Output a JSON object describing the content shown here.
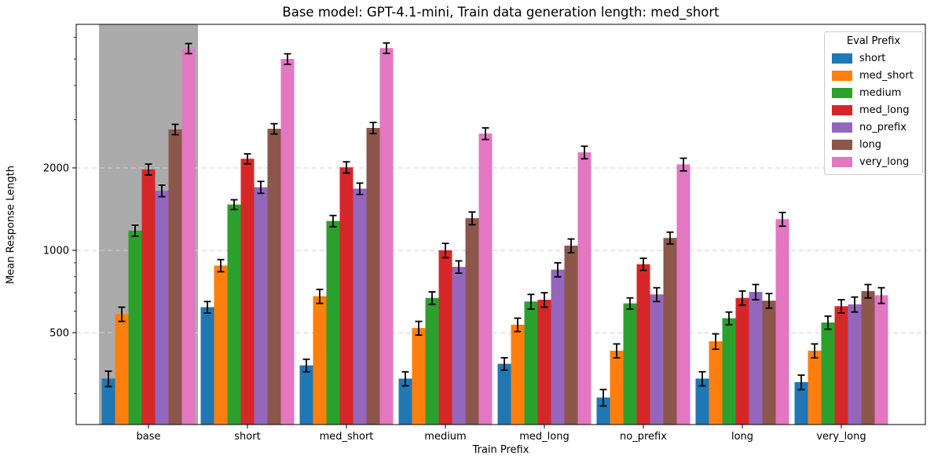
{
  "figure": {
    "background": "#ffffff"
  },
  "chart_data": {
    "type": "bar",
    "title": "Base model: GPT-4.1-mini, Train data generation length: med_short",
    "xlabel": "Train Prefix",
    "ylabel": "Mean Response Length",
    "y_scale": "log",
    "ylim": [
      231,
      6690
    ],
    "y_ticks": [
      500,
      1000,
      2000
    ],
    "y_minor_ticks": [
      300,
      400,
      600,
      700,
      800,
      900,
      3000,
      4000,
      5000,
      6000
    ],
    "grid": {
      "show": true,
      "style": "dashed",
      "color": "#d0d0d0",
      "axis": "y"
    },
    "categories": [
      "base",
      "short",
      "med_short",
      "medium",
      "med_long",
      "no_prefix",
      "long",
      "very_long"
    ],
    "highlight": {
      "category": "base",
      "color": "#ababab"
    },
    "legend": {
      "title": "Eval Prefix",
      "position": "upper right"
    },
    "error_bar_color": "#000000",
    "series": [
      {
        "name": "short",
        "color": "#1f77b4",
        "values": [
          340,
          620,
          380,
          340,
          385,
          290,
          340,
          330
        ],
        "errors": [
          22,
          30,
          20,
          20,
          20,
          20,
          20,
          20
        ]
      },
      {
        "name": "med_short",
        "color": "#ff7f0e",
        "values": [
          585,
          880,
          680,
          520,
          535,
          430,
          465,
          430
        ],
        "errors": [
          35,
          45,
          40,
          30,
          30,
          25,
          30,
          25
        ]
      },
      {
        "name": "medium",
        "color": "#2ca02c",
        "values": [
          1180,
          1470,
          1280,
          670,
          650,
          640,
          565,
          545
        ],
        "errors": [
          55,
          60,
          60,
          35,
          40,
          30,
          30,
          30
        ]
      },
      {
        "name": "med_long",
        "color": "#d62728",
        "values": [
          1975,
          2160,
          2010,
          1000,
          660,
          890,
          670,
          625
        ],
        "errors": [
          90,
          90,
          95,
          60,
          40,
          45,
          40,
          35
        ]
      },
      {
        "name": "no_prefix",
        "color": "#9467bd",
        "values": [
          1650,
          1700,
          1680,
          870,
          850,
          690,
          705,
          635
        ],
        "errors": [
          80,
          85,
          80,
          45,
          50,
          40,
          45,
          40
        ]
      },
      {
        "name": "long",
        "color": "#8c564b",
        "values": [
          2765,
          2780,
          2800,
          1310,
          1040,
          1110,
          655,
          710
        ],
        "errors": [
          120,
          120,
          130,
          70,
          60,
          55,
          40,
          40
        ]
      },
      {
        "name": "very_long",
        "color": "#e377c2",
        "values": [
          5460,
          5000,
          5480,
          2670,
          2280,
          2060,
          1300,
          685
        ],
        "errors": [
          230,
          220,
          240,
          130,
          120,
          110,
          75,
          45
        ]
      }
    ]
  }
}
